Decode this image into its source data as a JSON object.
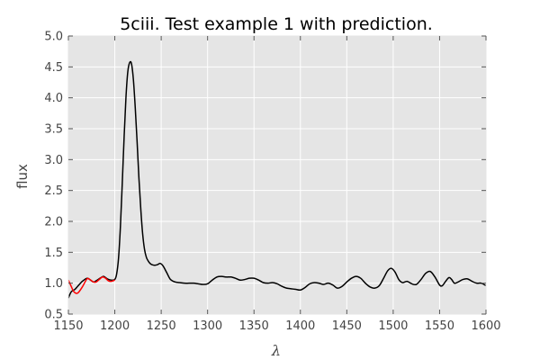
{
  "chart_data": {
    "type": "line",
    "title": "5ciii. Test example 1 with prediction.",
    "xlabel": "λ",
    "ylabel": "flux",
    "xlim": [
      1150,
      1600
    ],
    "ylim": [
      0.5,
      5.0
    ],
    "xticks": [
      "1150",
      "1200",
      "1250",
      "1300",
      "1350",
      "1400",
      "1450",
      "1500",
      "1550",
      "1600"
    ],
    "yticks": [
      "0.5",
      "1.0",
      "1.5",
      "2.0",
      "2.5",
      "3.0",
      "3.5",
      "4.0",
      "4.5",
      "5.0"
    ],
    "grid": true,
    "background": "#e5e5e5",
    "series": [
      {
        "color": "#000000",
        "x": [
          1150,
          1153,
          1157,
          1160,
          1165,
          1170,
          1173,
          1177,
          1180,
          1185,
          1188,
          1192,
          1196,
          1200,
          1202,
          1204,
          1206,
          1208,
          1210,
          1212,
          1214,
          1216,
          1218,
          1220,
          1222,
          1224,
          1226,
          1228,
          1230,
          1232,
          1234,
          1236,
          1238,
          1240,
          1243,
          1246,
          1249,
          1252,
          1256,
          1260,
          1265,
          1270,
          1275,
          1280,
          1285,
          1290,
          1295,
          1300,
          1305,
          1310,
          1315,
          1320,
          1325,
          1330,
          1335,
          1340,
          1345,
          1350,
          1355,
          1360,
          1365,
          1370,
          1375,
          1380,
          1385,
          1390,
          1395,
          1400,
          1405,
          1410,
          1415,
          1420,
          1425,
          1430,
          1435,
          1440,
          1445,
          1450,
          1455,
          1460,
          1465,
          1470,
          1475,
          1480,
          1485,
          1490,
          1494,
          1498,
          1502,
          1506,
          1510,
          1515,
          1520,
          1525,
          1530,
          1535,
          1540,
          1545,
          1550,
          1553,
          1556,
          1560,
          1563,
          1566,
          1570,
          1575,
          1580,
          1585,
          1590,
          1595,
          1600
        ],
        "y": [
          0.76,
          0.86,
          0.9,
          0.95,
          1.03,
          1.08,
          1.06,
          1.02,
          1.04,
          1.09,
          1.11,
          1.07,
          1.05,
          1.06,
          1.15,
          1.4,
          1.9,
          2.6,
          3.35,
          4.0,
          4.42,
          4.57,
          4.55,
          4.3,
          3.85,
          3.3,
          2.7,
          2.2,
          1.8,
          1.55,
          1.42,
          1.36,
          1.32,
          1.3,
          1.29,
          1.3,
          1.32,
          1.28,
          1.17,
          1.06,
          1.02,
          1.01,
          1.0,
          1.0,
          1.0,
          0.99,
          0.98,
          0.99,
          1.05,
          1.1,
          1.11,
          1.1,
          1.1,
          1.08,
          1.05,
          1.06,
          1.08,
          1.08,
          1.05,
          1.01,
          1.0,
          1.01,
          0.99,
          0.95,
          0.92,
          0.91,
          0.9,
          0.89,
          0.93,
          0.99,
          1.01,
          1.0,
          0.98,
          1.0,
          0.97,
          0.92,
          0.95,
          1.02,
          1.08,
          1.11,
          1.08,
          1.0,
          0.94,
          0.92,
          0.96,
          1.09,
          1.2,
          1.24,
          1.18,
          1.06,
          1.01,
          1.03,
          0.99,
          0.98,
          1.06,
          1.16,
          1.19,
          1.1,
          0.97,
          0.96,
          1.02,
          1.09,
          1.06,
          1.0,
          1.02,
          1.06,
          1.07,
          1.03,
          1.0,
          1.0,
          0.96
        ],
        "width": 1.5
      },
      {
        "color": "#ff0000",
        "x": [
          1150,
          1153,
          1156,
          1160,
          1165,
          1170,
          1173,
          1177,
          1180,
          1184,
          1187,
          1190,
          1193,
          1196,
          1200
        ],
        "y": [
          1.05,
          0.95,
          0.86,
          0.84,
          0.94,
          1.07,
          1.06,
          1.02,
          1.02,
          1.07,
          1.1,
          1.08,
          1.04,
          1.03,
          1.05
        ],
        "width": 1.5
      }
    ]
  }
}
